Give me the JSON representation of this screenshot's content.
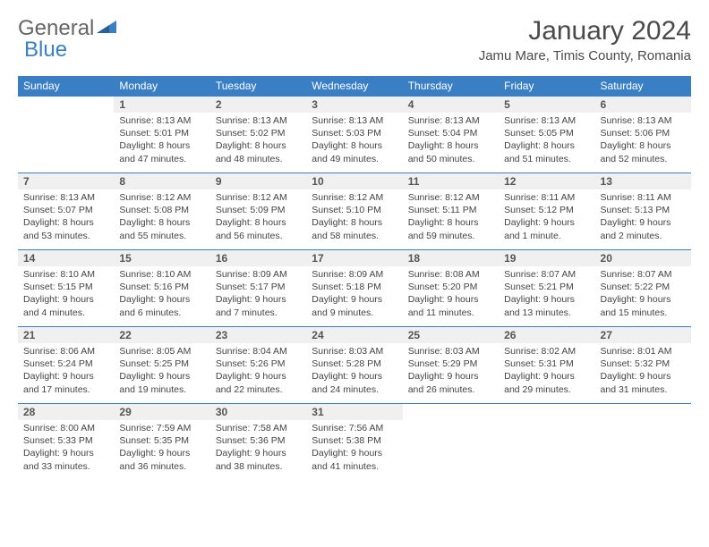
{
  "brand": {
    "part1": "General",
    "part2": "Blue"
  },
  "title": "January 2024",
  "location": "Jamu Mare, Timis County, Romania",
  "colors": {
    "header_bg": "#3a7fc4",
    "header_fg": "#ffffff",
    "daynum_bg": "#f0f0f0",
    "border": "#3a7fc4",
    "text": "#4a4a4a"
  },
  "weekdays": [
    "Sunday",
    "Monday",
    "Tuesday",
    "Wednesday",
    "Thursday",
    "Friday",
    "Saturday"
  ],
  "weeks": [
    [
      null,
      {
        "n": "1",
        "sr": "8:13 AM",
        "ss": "5:01 PM",
        "dl": "8 hours and 47 minutes."
      },
      {
        "n": "2",
        "sr": "8:13 AM",
        "ss": "5:02 PM",
        "dl": "8 hours and 48 minutes."
      },
      {
        "n": "3",
        "sr": "8:13 AM",
        "ss": "5:03 PM",
        "dl": "8 hours and 49 minutes."
      },
      {
        "n": "4",
        "sr": "8:13 AM",
        "ss": "5:04 PM",
        "dl": "8 hours and 50 minutes."
      },
      {
        "n": "5",
        "sr": "8:13 AM",
        "ss": "5:05 PM",
        "dl": "8 hours and 51 minutes."
      },
      {
        "n": "6",
        "sr": "8:13 AM",
        "ss": "5:06 PM",
        "dl": "8 hours and 52 minutes."
      }
    ],
    [
      {
        "n": "7",
        "sr": "8:13 AM",
        "ss": "5:07 PM",
        "dl": "8 hours and 53 minutes."
      },
      {
        "n": "8",
        "sr": "8:12 AM",
        "ss": "5:08 PM",
        "dl": "8 hours and 55 minutes."
      },
      {
        "n": "9",
        "sr": "8:12 AM",
        "ss": "5:09 PM",
        "dl": "8 hours and 56 minutes."
      },
      {
        "n": "10",
        "sr": "8:12 AM",
        "ss": "5:10 PM",
        "dl": "8 hours and 58 minutes."
      },
      {
        "n": "11",
        "sr": "8:12 AM",
        "ss": "5:11 PM",
        "dl": "8 hours and 59 minutes."
      },
      {
        "n": "12",
        "sr": "8:11 AM",
        "ss": "5:12 PM",
        "dl": "9 hours and 1 minute."
      },
      {
        "n": "13",
        "sr": "8:11 AM",
        "ss": "5:13 PM",
        "dl": "9 hours and 2 minutes."
      }
    ],
    [
      {
        "n": "14",
        "sr": "8:10 AM",
        "ss": "5:15 PM",
        "dl": "9 hours and 4 minutes."
      },
      {
        "n": "15",
        "sr": "8:10 AM",
        "ss": "5:16 PM",
        "dl": "9 hours and 6 minutes."
      },
      {
        "n": "16",
        "sr": "8:09 AM",
        "ss": "5:17 PM",
        "dl": "9 hours and 7 minutes."
      },
      {
        "n": "17",
        "sr": "8:09 AM",
        "ss": "5:18 PM",
        "dl": "9 hours and 9 minutes."
      },
      {
        "n": "18",
        "sr": "8:08 AM",
        "ss": "5:20 PM",
        "dl": "9 hours and 11 minutes."
      },
      {
        "n": "19",
        "sr": "8:07 AM",
        "ss": "5:21 PM",
        "dl": "9 hours and 13 minutes."
      },
      {
        "n": "20",
        "sr": "8:07 AM",
        "ss": "5:22 PM",
        "dl": "9 hours and 15 minutes."
      }
    ],
    [
      {
        "n": "21",
        "sr": "8:06 AM",
        "ss": "5:24 PM",
        "dl": "9 hours and 17 minutes."
      },
      {
        "n": "22",
        "sr": "8:05 AM",
        "ss": "5:25 PM",
        "dl": "9 hours and 19 minutes."
      },
      {
        "n": "23",
        "sr": "8:04 AM",
        "ss": "5:26 PM",
        "dl": "9 hours and 22 minutes."
      },
      {
        "n": "24",
        "sr": "8:03 AM",
        "ss": "5:28 PM",
        "dl": "9 hours and 24 minutes."
      },
      {
        "n": "25",
        "sr": "8:03 AM",
        "ss": "5:29 PM",
        "dl": "9 hours and 26 minutes."
      },
      {
        "n": "26",
        "sr": "8:02 AM",
        "ss": "5:31 PM",
        "dl": "9 hours and 29 minutes."
      },
      {
        "n": "27",
        "sr": "8:01 AM",
        "ss": "5:32 PM",
        "dl": "9 hours and 31 minutes."
      }
    ],
    [
      {
        "n": "28",
        "sr": "8:00 AM",
        "ss": "5:33 PM",
        "dl": "9 hours and 33 minutes."
      },
      {
        "n": "29",
        "sr": "7:59 AM",
        "ss": "5:35 PM",
        "dl": "9 hours and 36 minutes."
      },
      {
        "n": "30",
        "sr": "7:58 AM",
        "ss": "5:36 PM",
        "dl": "9 hours and 38 minutes."
      },
      {
        "n": "31",
        "sr": "7:56 AM",
        "ss": "5:38 PM",
        "dl": "9 hours and 41 minutes."
      },
      null,
      null,
      null
    ]
  ],
  "labels": {
    "sunrise": "Sunrise:",
    "sunset": "Sunset:",
    "daylight": "Daylight:"
  }
}
